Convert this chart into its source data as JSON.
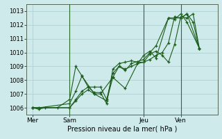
{
  "xlabel": "Pression niveau de la mer( hPa )",
  "background_color": "#ceeaea",
  "grid_color": "#aacccc",
  "line_color": "#1a5c1a",
  "vline_color": "#2a6a2a",
  "ylim": [
    1005.5,
    1013.5
  ],
  "yticks": [
    1006,
    1007,
    1008,
    1009,
    1010,
    1011,
    1012,
    1013
  ],
  "day_labels": [
    "Mer",
    "Sam",
    "Jeu",
    "Ven"
  ],
  "day_positions": [
    0,
    24,
    72,
    96
  ],
  "vline_positions": [
    24,
    72,
    96
  ],
  "xlim": [
    -4,
    120
  ],
  "series": [
    {
      "x": [
        0,
        4,
        24,
        28,
        32,
        36,
        40,
        44,
        48,
        52,
        56,
        60,
        64,
        68,
        72,
        76,
        80,
        84,
        88,
        92,
        96,
        100,
        104,
        108
      ],
      "y": [
        1006.0,
        1006.0,
        1006.3,
        1007.2,
        1008.3,
        1007.5,
        1007.1,
        1007.1,
        1006.3,
        1008.8,
        1009.2,
        1009.3,
        1009.4,
        1009.3,
        1009.3,
        1009.9,
        1010.1,
        1009.8,
        1009.3,
        1010.6,
        1012.6,
        1012.5,
        1012.8,
        1010.3
      ]
    },
    {
      "x": [
        0,
        24,
        28,
        32,
        36,
        40,
        44,
        48,
        52,
        56,
        60,
        64,
        68,
        72,
        76,
        80,
        84,
        88,
        92,
        96,
        100,
        104,
        108
      ],
      "y": [
        1006.0,
        1006.0,
        1006.6,
        1007.2,
        1007.5,
        1007.5,
        1007.5,
        1006.6,
        1008.5,
        1009.0,
        1008.8,
        1009.0,
        1009.2,
        1009.3,
        1009.5,
        1009.8,
        1010.0,
        1010.7,
        1012.6,
        1012.5,
        1012.8,
        1012.2,
        1010.3
      ]
    },
    {
      "x": [
        0,
        24,
        28,
        32,
        36,
        40,
        48,
        52,
        56,
        60,
        64,
        72,
        76,
        80,
        88,
        96,
        100,
        108
      ],
      "y": [
        1006.0,
        1006.0,
        1006.5,
        1007.0,
        1007.3,
        1007.0,
        1006.5,
        1008.2,
        1009.0,
        1008.7,
        1009.2,
        1009.5,
        1010.0,
        1010.5,
        1012.5,
        1012.5,
        1012.8,
        1010.3
      ]
    },
    {
      "x": [
        0,
        4,
        8,
        16,
        24,
        28,
        32,
        40,
        44,
        52,
        60,
        68,
        72,
        76,
        80,
        88,
        92,
        96,
        100,
        108
      ],
      "y": [
        1006.0,
        1005.9,
        1006.0,
        1006.0,
        1006.6,
        1009.0,
        1008.3,
        1007.0,
        1007.0,
        1008.2,
        1007.4,
        1009.2,
        1009.8,
        1010.1,
        1009.6,
        1012.5,
        1012.4,
        1012.8,
        1012.2,
        1010.3
      ]
    }
  ]
}
